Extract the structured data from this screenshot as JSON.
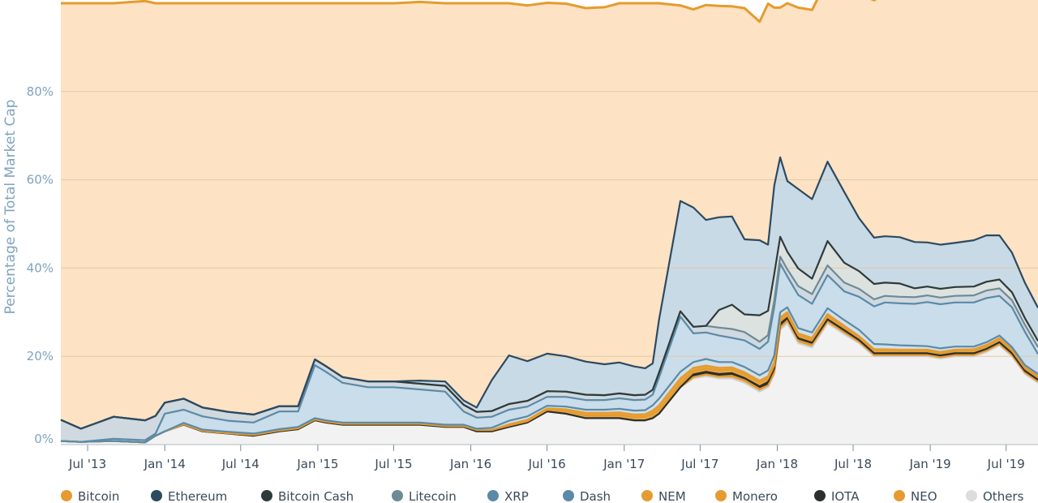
{
  "chart_data": {
    "type": "area",
    "stacked": true,
    "ylabel": "Percentage of Total Market Cap",
    "ylim": [
      0,
      100
    ],
    "y_ticks": [
      0,
      20,
      40,
      60,
      80
    ],
    "y_tick_labels": [
      "0%",
      "20%",
      "40%",
      "60%",
      "80%"
    ],
    "x_tick_labels": [
      "Jul '13",
      "Jan '14",
      "Jul '14",
      "Jan '15",
      "Jul '15",
      "Jan '16",
      "Jul '16",
      "Jan '17",
      "Jul '17",
      "Jan '18",
      "Jul '18",
      "Jan '19",
      "Jul '19"
    ],
    "x_tick_dates": [
      "2013-07-01",
      "2014-01-01",
      "2014-07-01",
      "2015-01-01",
      "2015-07-01",
      "2016-01-01",
      "2016-07-01",
      "2017-01-01",
      "2017-07-01",
      "2018-01-01",
      "2018-07-01",
      "2019-01-01",
      "2019-07-01"
    ],
    "x_range": [
      "2013-04-28",
      "2019-09-15"
    ],
    "grid": true,
    "legend_position": "bottom",
    "legend": [
      "Bitcoin",
      "Ethereum",
      "Bitcoin Cash",
      "Litecoin",
      "XRP",
      "Dash",
      "NEM",
      "Monero",
      "IOTA",
      "NEO",
      "Others"
    ],
    "x": [
      "2013-04-28",
      "2013-06-15",
      "2013-09-01",
      "2013-11-15",
      "2013-12-10",
      "2014-01-01",
      "2014-02-15",
      "2014-04-01",
      "2014-06-01",
      "2014-08-01",
      "2014-10-01",
      "2014-11-15",
      "2014-12-25",
      "2015-01-20",
      "2015-03-01",
      "2015-05-01",
      "2015-07-01",
      "2015-09-01",
      "2015-11-01",
      "2015-12-15",
      "2016-01-15",
      "2016-02-20",
      "2016-04-01",
      "2016-05-15",
      "2016-07-01",
      "2016-08-15",
      "2016-10-01",
      "2016-11-15",
      "2016-12-20",
      "2017-01-25",
      "2017-02-20",
      "2017-03-10",
      "2017-03-25",
      "2017-05-15",
      "2017-06-15",
      "2017-07-15",
      "2017-08-15",
      "2017-09-15",
      "2017-10-15",
      "2017-11-20",
      "2017-12-10",
      "2017-12-25",
      "2018-01-08",
      "2018-01-25",
      "2018-02-20",
      "2018-03-25",
      "2018-05-01",
      "2018-06-10",
      "2018-07-15",
      "2018-08-20",
      "2018-09-15",
      "2018-10-20",
      "2018-11-25",
      "2018-12-25",
      "2019-01-25",
      "2019-03-01",
      "2019-04-15",
      "2019-05-15",
      "2019-06-15",
      "2019-07-15",
      "2019-08-15",
      "2019-09-15"
    ],
    "series": [
      {
        "name": "Others",
        "color": "#f2f2f2",
        "stroke": "#d0d0d0",
        "values": [
          0.8,
          0.6,
          0.8,
          0.5,
          2,
          3,
          4.5,
          3,
          2.5,
          2,
          3,
          3.5,
          5.5,
          5,
          4.5,
          4.5,
          4.5,
          4.5,
          4,
          4,
          3,
          3,
          4,
          5,
          7.5,
          7,
          6,
          6,
          6,
          5.5,
          5.5,
          6,
          7,
          13,
          15,
          15.5,
          15,
          15,
          14,
          12,
          13,
          16,
          26,
          27.5,
          23,
          22,
          27.5,
          25,
          23,
          20,
          20,
          20,
          20,
          20,
          19.5,
          20,
          20,
          21,
          22.5,
          20,
          16,
          14
        ]
      },
      {
        "name": "NEO",
        "color": "#e59b2f",
        "stroke": "#e59b2f",
        "values": [
          0,
          0,
          0,
          0,
          0,
          0,
          0,
          0,
          0,
          0,
          0,
          0,
          0,
          0,
          0,
          0,
          0,
          0,
          0,
          0,
          0,
          0,
          0,
          0,
          0,
          0,
          0,
          0,
          0,
          0,
          0,
          0,
          0,
          0,
          0.3,
          0.4,
          0.4,
          0.6,
          0.6,
          0.6,
          0.4,
          0.4,
          0.6,
          0.6,
          0.6,
          0.6,
          0.4,
          0.4,
          0.3,
          0.3,
          0.3,
          0.3,
          0.3,
          0.3,
          0.3,
          0.3,
          0.3,
          0.3,
          0.3,
          0.3,
          0.3,
          0.3
        ]
      },
      {
        "name": "IOTA",
        "color": "#2b2f30",
        "stroke": "#2b2f30",
        "values": [
          0,
          0,
          0,
          0,
          0,
          0,
          0,
          0,
          0,
          0,
          0,
          0,
          0,
          0,
          0,
          0,
          0,
          0,
          0,
          0,
          0,
          0,
          0,
          0,
          0,
          0,
          0,
          0,
          0,
          0,
          0,
          0,
          0,
          0,
          0.6,
          0.6,
          0.6,
          0.6,
          0.5,
          0.6,
          0.8,
          0.9,
          0.8,
          0.6,
          0.5,
          0.5,
          0.5,
          0.5,
          0.4,
          0.4,
          0.4,
          0.4,
          0.4,
          0.4,
          0.4,
          0.4,
          0.4,
          0.4,
          0.4,
          0.4,
          0.4,
          0.4
        ]
      },
      {
        "name": "Monero",
        "color": "#eaa945",
        "stroke": "#e59b2f",
        "values": [
          0,
          0,
          0,
          0,
          0,
          0,
          0.1,
          0.1,
          0.1,
          0.2,
          0.2,
          0.2,
          0.2,
          0.2,
          0.2,
          0.2,
          0.2,
          0.2,
          0.2,
          0.2,
          0.3,
          0.3,
          0.3,
          0.3,
          0.4,
          0.6,
          0.6,
          0.6,
          0.7,
          0.7,
          0.8,
          0.9,
          0.9,
          0.8,
          0.7,
          0.7,
          0.8,
          0.8,
          0.8,
          0.8,
          0.7,
          0.6,
          0.6,
          0.6,
          0.6,
          0.6,
          0.7,
          0.6,
          0.6,
          0.6,
          0.6,
          0.5,
          0.5,
          0.5,
          0.5,
          0.5,
          0.6,
          0.6,
          0.6,
          0.6,
          0.5,
          0.5
        ]
      },
      {
        "name": "NEM",
        "color": "#e8a33c",
        "stroke": "#e59b2f",
        "values": [
          0,
          0,
          0,
          0,
          0,
          0,
          0,
          0,
          0,
          0,
          0,
          0,
          0,
          0,
          0,
          0,
          0,
          0,
          0,
          0,
          0,
          0,
          0.3,
          0.3,
          0.3,
          0.4,
          0.6,
          0.6,
          0.6,
          0.6,
          0.6,
          0.8,
          1,
          1.2,
          0.8,
          0.7,
          0.6,
          0.5,
          0.5,
          0.5,
          0.6,
          0.8,
          0.8,
          0.7,
          0.5,
          0.5,
          0.5,
          0.4,
          0.3,
          0.3,
          0.3,
          0.3,
          0.3,
          0.3,
          0.3,
          0.3,
          0.3,
          0.3,
          0.3,
          0.3,
          0.3,
          0.3
        ]
      },
      {
        "name": "Dash",
        "color": "#cfe1ec",
        "stroke": "#5b8aa8",
        "values": [
          0,
          0,
          0,
          0,
          0,
          0,
          0.3,
          0.3,
          0.3,
          0.3,
          0.3,
          0.3,
          0.3,
          0.3,
          0.3,
          0.3,
          0.3,
          0.3,
          0.3,
          0.3,
          0.3,
          0.5,
          0.8,
          0.8,
          0.6,
          0.6,
          0.7,
          0.7,
          0.8,
          0.9,
          0.9,
          1.2,
          1.5,
          1.5,
          1.3,
          1.5,
          1.3,
          1.2,
          1.2,
          1.2,
          1.3,
          1.5,
          1.2,
          1.1,
          1.2,
          1.2,
          1.3,
          1.3,
          1.4,
          1.2,
          1.1,
          1.0,
          0.9,
          0.8,
          0.8,
          0.7,
          0.6,
          0.6,
          0.6,
          0.5,
          0.5,
          0.5
        ]
      },
      {
        "name": "XRP",
        "color": "#c9ddeb",
        "stroke": "#5b8aa8",
        "values": [
          0,
          0,
          0.5,
          0.5,
          0.5,
          4,
          3,
          3,
          2.5,
          2.5,
          4,
          3.5,
          12,
          11,
          9,
          8,
          8,
          7.5,
          7.5,
          3,
          2.5,
          2.5,
          2.5,
          2.2,
          2.0,
          2.2,
          2.2,
          2.2,
          2.4,
          2.4,
          2.4,
          2.4,
          4.8,
          12.5,
          6.5,
          6,
          6,
          5.5,
          6,
          6,
          6.5,
          11,
          11,
          7,
          7.5,
          6.5,
          7.5,
          6.5,
          7.5,
          8.5,
          9.5,
          9.5,
          9.5,
          10,
          10,
          10,
          10,
          10,
          9,
          9,
          7.5,
          4.5
        ]
      },
      {
        "name": "Litecoin",
        "color": "#cfd9df",
        "stroke": "#6e8a96",
        "values": [
          4.8,
          3,
          5,
          4.5,
          4,
          2.5,
          2.5,
          2,
          2,
          1.8,
          1.2,
          1.2,
          1.3,
          1.3,
          1.3,
          1.3,
          1.3,
          1.3,
          1.3,
          1.5,
          1.3,
          1.3,
          1.3,
          1.3,
          1.3,
          1.2,
          1.2,
          1.1,
          1.1,
          1.1,
          1.1,
          1.1,
          1.1,
          1.2,
          1.5,
          1.5,
          1.8,
          2.0,
          1.9,
          1.6,
          1.5,
          1.5,
          1.6,
          1.6,
          2,
          2.2,
          2.2,
          2,
          1.8,
          1.6,
          1.5,
          1.5,
          1.5,
          1.5,
          1.5,
          1.5,
          1.6,
          1.7,
          1.7,
          1.6,
          1.6,
          1.6
        ]
      },
      {
        "name": "Bitcoin Cash",
        "color": "#dce2df",
        "stroke": "#2f3a3a",
        "values": [
          0,
          0,
          0,
          0,
          0,
          0,
          0,
          0,
          0,
          0,
          0,
          0,
          0,
          0,
          0,
          0,
          0,
          0,
          0,
          0,
          0,
          0,
          0,
          0,
          0,
          0,
          0,
          0,
          0,
          0,
          0,
          0,
          0,
          0,
          0,
          0,
          4,
          5.5,
          4,
          6,
          5.5,
          6,
          4.5,
          4,
          4,
          3.5,
          5.5,
          4.5,
          4,
          3.5,
          3,
          3,
          2,
          2,
          2,
          2,
          2,
          2,
          2,
          1.8,
          1.5,
          1.4
        ]
      },
      {
        "name": "Ethereum",
        "color": "#c8dae6",
        "stroke": "#2c4a60",
        "values": [
          0,
          0,
          0,
          0,
          0,
          0,
          0,
          0,
          0,
          0,
          0,
          0,
          0,
          0,
          0,
          0,
          0,
          0.7,
          1,
          1,
          1,
          7,
          11,
          9,
          8.5,
          8,
          7.5,
          7,
          7,
          6.5,
          6,
          6,
          12,
          25,
          27,
          24,
          21,
          20,
          17,
          17,
          15,
          20,
          18,
          16,
          18,
          18,
          18,
          16,
          12,
          10.5,
          10.5,
          10.5,
          10.5,
          10,
          10,
          10,
          10.5,
          10.5,
          10,
          9,
          8,
          7.5
        ]
      },
      {
        "name": "Bitcoin",
        "color": "#fde2c3",
        "stroke": "#e59b2f",
        "values": [
          94.4,
          96.4,
          93.7,
          95,
          93.5,
          90.5,
          89.6,
          91.6,
          92.6,
          93.2,
          91.3,
          91.3,
          80.7,
          82.2,
          84.7,
          85.7,
          85.7,
          85.8,
          85.7,
          90,
          91.6,
          85.4,
          79.8,
          80.6,
          79.5,
          79.9,
          80.1,
          80.9,
          81.4,
          82.3,
          82.7,
          81.6,
          71.7,
          44.3,
          44.9,
          48.7,
          47.9,
          47.6,
          52.4,
          49.5,
          54.6,
          40.3,
          33.9,
          40.3,
          41.1,
          42.9,
          41.4,
          46.3,
          50.7,
          53.8,
          54.8,
          55,
          56.4,
          56.5,
          57,
          56.6,
          56.4,
          54.8,
          54.3,
          57.8,
          65.4,
          72.9
        ]
      }
    ]
  }
}
